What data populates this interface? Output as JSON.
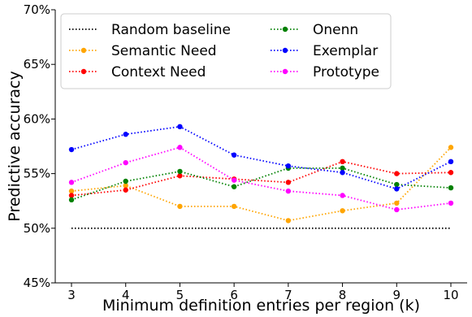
{
  "chart_data": {
    "type": "line",
    "title": "",
    "xlabel": "Minimum definition entries per region (k)",
    "ylabel": "Predictive accuracy",
    "x": [
      3,
      4,
      5,
      6,
      7,
      8,
      9,
      10
    ],
    "ylim": [
      45,
      70
    ],
    "yticks": [
      45,
      50,
      55,
      60,
      65,
      70
    ],
    "ytick_labels": [
      "45%",
      "50%",
      "55%",
      "60%",
      "65%",
      "70%"
    ],
    "xtick_labels": [
      "3",
      "4",
      "5",
      "6",
      "7",
      "8",
      "9",
      "10"
    ],
    "grid": false,
    "legend_position": "top-left",
    "series": [
      {
        "name": "Random baseline",
        "color": "#000000",
        "marker": false,
        "values": [
          50,
          50,
          50,
          50,
          50,
          50,
          50,
          50
        ]
      },
      {
        "name": "Semantic Need",
        "color": "#FFA500",
        "marker": true,
        "values": [
          53.4,
          53.9,
          52.0,
          52.0,
          50.7,
          51.6,
          52.3,
          57.4
        ]
      },
      {
        "name": "Context Need",
        "color": "#FF0000",
        "marker": true,
        "values": [
          53.0,
          53.5,
          54.8,
          54.5,
          54.2,
          56.1,
          55.0,
          55.1
        ]
      },
      {
        "name": "Onenn",
        "color": "#008000",
        "marker": true,
        "values": [
          52.6,
          54.3,
          55.2,
          53.8,
          55.5,
          55.5,
          54.0,
          53.7
        ]
      },
      {
        "name": "Exemplar",
        "color": "#0000FF",
        "marker": true,
        "values": [
          57.2,
          58.6,
          59.3,
          56.7,
          55.7,
          55.1,
          53.6,
          56.1
        ]
      },
      {
        "name": "Prototype",
        "color": "#FF00FF",
        "marker": true,
        "values": [
          54.2,
          56.0,
          57.4,
          54.4,
          53.4,
          53.0,
          51.7,
          52.3
        ]
      }
    ]
  }
}
